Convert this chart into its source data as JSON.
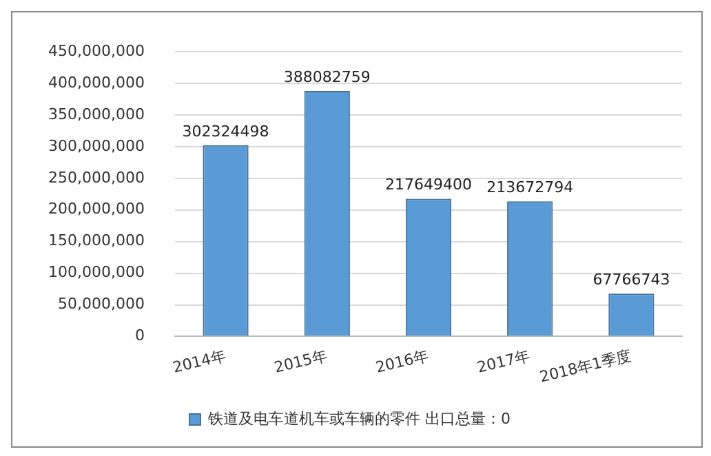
{
  "chart_data": {
    "type": "bar",
    "categories": [
      "2014年",
      "2015年",
      "2016年",
      "2017年",
      "2018年1季度"
    ],
    "series": [
      {
        "name": "铁道及电车道机车或车辆的零件 出口总量：0",
        "color": "#5b9bd5",
        "values": [
          302324498,
          388082759,
          217649400,
          213672794,
          67766743
        ]
      }
    ],
    "ylim": [
      0,
      450000000
    ],
    "yticks": [
      {
        "value": 0,
        "label": "0"
      },
      {
        "value": 50000000,
        "label": "50,000,000"
      },
      {
        "value": 100000000,
        "label": "100,000,000"
      },
      {
        "value": 150000000,
        "label": "150,000,000"
      },
      {
        "value": 200000000,
        "label": "200,000,000"
      },
      {
        "value": 250000000,
        "label": "250,000,000"
      },
      {
        "value": 300000000,
        "label": "300,000,000"
      },
      {
        "value": 350000000,
        "label": "350,000,000"
      },
      {
        "value": 400000000,
        "label": "400,000,000"
      },
      {
        "value": 450000000,
        "label": "450,000,000"
      }
    ],
    "grid": "y",
    "legend": "bottom",
    "data_labels": true
  }
}
